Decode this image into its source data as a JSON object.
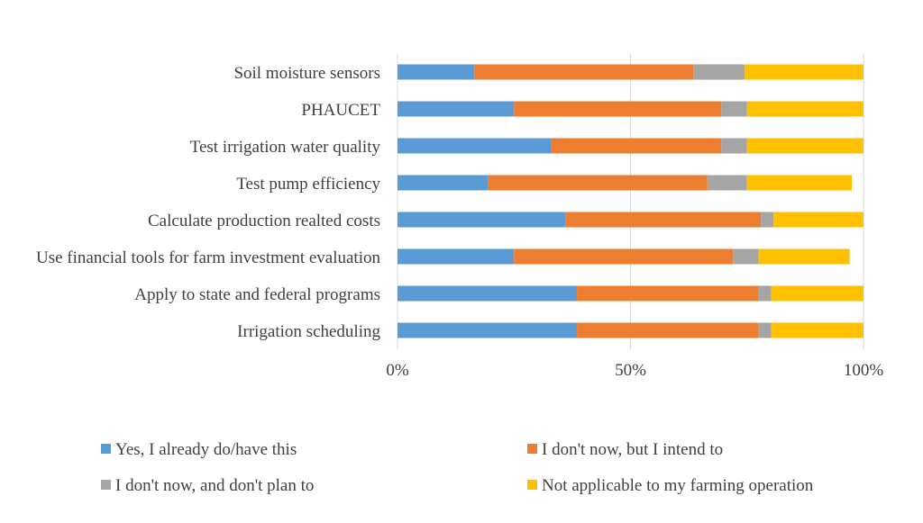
{
  "chart_data": {
    "type": "bar",
    "orientation": "horizontal",
    "stacked": true,
    "categories": [
      "Soil moisture sensors",
      "PHAUCET",
      "Test irrigation water quality ",
      "Test pump efficiency",
      "Calculate production realted costs",
      "Use financial tools for farm investment evaluation",
      "Apply to state and federal programs",
      "Irrigation scheduling"
    ],
    "series": [
      {
        "name": "Yes, I already do/have this",
        "color": "#5B9BD5",
        "values": [
          16.5,
          25,
          33,
          19.5,
          36,
          25,
          38.5,
          38.5
        ]
      },
      {
        "name": "I don't now, but I intend to",
        "color": "#ED7D31",
        "values": [
          47,
          44.5,
          36.5,
          47,
          42,
          47,
          39,
          39
        ]
      },
      {
        "name": "I don't now, and don't plan to",
        "color": "#A5A5A5",
        "values": [
          11,
          5.5,
          5.5,
          8.5,
          2.7,
          5.5,
          2.7,
          2.7
        ]
      },
      {
        "name": "Not applicable to my farming operation",
        "color": "#FFC000",
        "values": [
          25.5,
          25,
          25,
          22.5,
          19.3,
          19.5,
          19.8,
          19.8
        ]
      }
    ],
    "x_ticks": [
      "0%",
      "50%",
      "100%"
    ],
    "xlim": [
      0,
      100
    ],
    "grid": "vertical",
    "legend_position": "bottom",
    "title": "",
    "xlabel": "",
    "ylabel": ""
  }
}
